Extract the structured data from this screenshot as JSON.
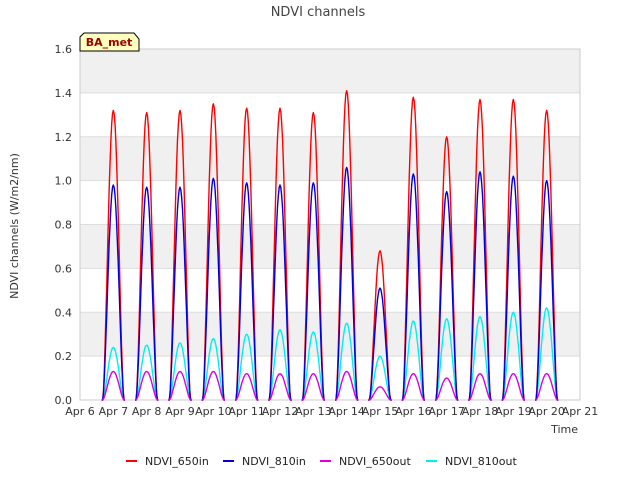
{
  "chart_data": {
    "type": "line",
    "title": "NDVI channels",
    "xlabel": "Time",
    "ylabel": "NDVI channels (W/m2/nm)",
    "xlim": [
      6,
      21
    ],
    "ylim": [
      0,
      1.6
    ],
    "x_ticks": [
      6,
      7,
      8,
      9,
      10,
      11,
      12,
      13,
      14,
      15,
      16,
      17,
      18,
      19,
      20,
      21
    ],
    "x_tick_labels": [
      "Apr 6",
      "Apr 7",
      "Apr 8",
      "Apr 9",
      "Apr 10",
      "Apr 11",
      "Apr 12",
      "Apr 13",
      "Apr 14",
      "Apr 15",
      "Apr 16",
      "Apr 17",
      "Apr 18",
      "Apr 19",
      "Apr 20",
      "Apr 21"
    ],
    "y_ticks": [
      0.0,
      0.2,
      0.4,
      0.6,
      0.8,
      1.0,
      1.2,
      1.4,
      1.6
    ],
    "y_tick_labels": [
      "0.0",
      "0.2",
      "0.4",
      "0.6",
      "0.8",
      "1.0",
      "1.2",
      "1.4",
      "1.6"
    ],
    "grid": true,
    "legend_position": "bottom",
    "annotation": "BA_met",
    "days": [
      7,
      8,
      9,
      10,
      11,
      12,
      13,
      14,
      15,
      16,
      17,
      18,
      19,
      20
    ],
    "series": [
      {
        "name": "NDVI_650in",
        "color": "#ff0000",
        "daily_peaks": [
          1.32,
          1.31,
          1.32,
          1.35,
          1.33,
          1.33,
          1.31,
          1.41,
          0.68,
          1.38,
          1.2,
          1.37,
          1.37,
          1.32
        ]
      },
      {
        "name": "NDVI_810in",
        "color": "#0000dd",
        "daily_peaks": [
          0.98,
          0.97,
          0.97,
          1.01,
          0.99,
          0.98,
          0.99,
          1.06,
          0.51,
          1.03,
          0.95,
          1.04,
          1.02,
          1.0
        ]
      },
      {
        "name": "NDVI_650out",
        "color": "#dd00dd",
        "daily_peaks": [
          0.13,
          0.13,
          0.13,
          0.13,
          0.12,
          0.12,
          0.12,
          0.13,
          0.06,
          0.12,
          0.1,
          0.12,
          0.12,
          0.12
        ]
      },
      {
        "name": "NDVI_810out",
        "color": "#00eeee",
        "daily_peaks": [
          0.24,
          0.25,
          0.26,
          0.28,
          0.3,
          0.32,
          0.31,
          0.35,
          0.2,
          0.36,
          0.37,
          0.38,
          0.4,
          0.42
        ]
      }
    ]
  }
}
